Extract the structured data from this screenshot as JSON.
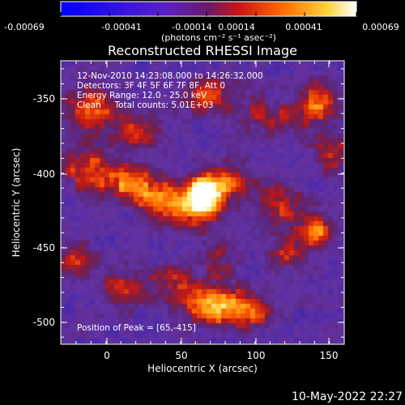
{
  "colorbar": {
    "tick_labels": [
      "-0.00069",
      "-0.00041",
      "-0.00014",
      "0.00014",
      "0.00041",
      "0.00069"
    ],
    "unit_label": "(photons cm⁻² s⁻¹ asec⁻²)"
  },
  "title": "Reconstructed RHESSI Image",
  "info": {
    "line1": "12-Nov-2010 14:23:08.000 to 14:26:32.000",
    "line2": "Detectors: 3F 4F 5F 6F 7F 8F, Att 0",
    "line3": "Energy Range: 12.0 - 25.0 keV",
    "line4": "Clean     Total counts: 5.01E+03"
  },
  "peak_label": "Position of Peak = [65,-415]",
  "axes": {
    "xlabel": "Heliocentric X (arcsec)",
    "ylabel": "Heliocentric Y (arcsec)",
    "x_ticks": [
      "0",
      "50",
      "100",
      "150"
    ],
    "y_ticks": [
      "-350",
      "-400",
      "-450",
      "-500"
    ]
  },
  "footer_date": "10-May-2022 22:27",
  "image": {
    "x_range": [
      -32,
      160
    ],
    "y_range": [
      -320,
      -518
    ],
    "peak": [
      65,
      -415
    ],
    "hot_spots": [
      {
        "x": 65,
        "y": -413,
        "a": 1.0,
        "sx": 9,
        "sy": 9
      },
      {
        "x": 55,
        "y": -425,
        "a": 0.55,
        "sx": 12,
        "sy": 9
      },
      {
        "x": 80,
        "y": -405,
        "a": 0.5,
        "sx": 12,
        "sy": 10
      },
      {
        "x": 35,
        "y": -415,
        "a": 0.55,
        "sx": 12,
        "sy": 10
      },
      {
        "x": 10,
        "y": -405,
        "a": 0.55,
        "sx": 14,
        "sy": 9
      },
      {
        "x": -15,
        "y": -395,
        "a": 0.5,
        "sx": 12,
        "sy": 9
      },
      {
        "x": -10,
        "y": -355,
        "a": 0.6,
        "sx": 12,
        "sy": 12
      },
      {
        "x": 20,
        "y": -370,
        "a": 0.45,
        "sx": 10,
        "sy": 9
      },
      {
        "x": 70,
        "y": -345,
        "a": 0.5,
        "sx": 14,
        "sy": 9
      },
      {
        "x": 108,
        "y": -360,
        "a": 0.4,
        "sx": 12,
        "sy": 9
      },
      {
        "x": 140,
        "y": -350,
        "a": 0.6,
        "sx": 10,
        "sy": 11
      },
      {
        "x": 150,
        "y": -385,
        "a": 0.45,
        "sx": 8,
        "sy": 10
      },
      {
        "x": 115,
        "y": -420,
        "a": 0.45,
        "sx": 10,
        "sy": 12
      },
      {
        "x": 140,
        "y": -440,
        "a": 0.7,
        "sx": 10,
        "sy": 9
      },
      {
        "x": 120,
        "y": -455,
        "a": 0.35,
        "sx": 10,
        "sy": 9
      },
      {
        "x": 70,
        "y": -490,
        "a": 0.75,
        "sx": 14,
        "sy": 10
      },
      {
        "x": 95,
        "y": -495,
        "a": 0.55,
        "sx": 12,
        "sy": 9
      },
      {
        "x": 45,
        "y": -475,
        "a": 0.4,
        "sx": 10,
        "sy": 9
      },
      {
        "x": 10,
        "y": -480,
        "a": 0.4,
        "sx": 12,
        "sy": 9
      },
      {
        "x": -20,
        "y": -460,
        "a": 0.4,
        "sx": 10,
        "sy": 9
      },
      {
        "x": 75,
        "y": -455,
        "a": 0.35,
        "sx": 8,
        "sy": 10
      }
    ]
  }
}
